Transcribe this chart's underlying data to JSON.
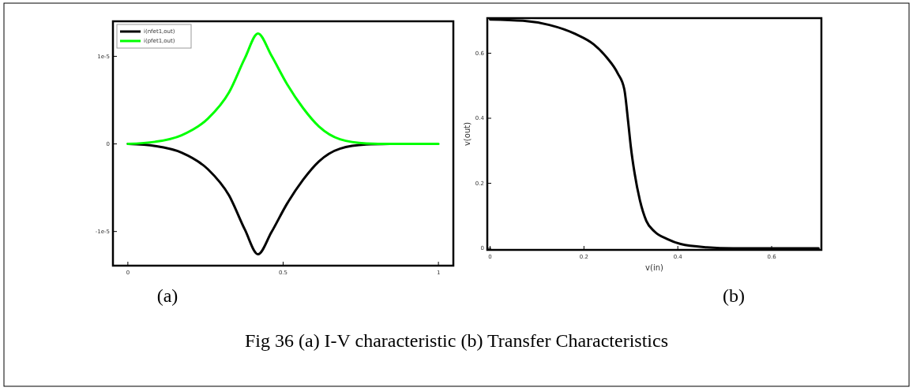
{
  "chart_data": [
    {
      "type": "line",
      "xlim": [
        -0.048,
        1.048
      ],
      "ylim": [
        -1.39e-05,
        1.4e-05
      ],
      "xticks": [
        0,
        0.5,
        1
      ],
      "yticks": [
        {
          "value": -1e-05,
          "label": "-1e-5"
        },
        0,
        {
          "value": 1e-05,
          "label": "1e-5"
        }
      ],
      "legend": "top left",
      "grid": false,
      "annotations": [
        "(a)"
      ],
      "series": [
        {
          "name": "i(nfet1,out)",
          "color": "#000000",
          "x": [
            0,
            0.088,
            0.173,
            0.258,
            0.326,
            0.377,
            0.419,
            0.462,
            0.513,
            0.564,
            0.615,
            0.683,
            0.768,
            0.844
          ],
          "values": [
            0,
            -2.4e-07,
            -9.9e-07,
            -2.9e-06,
            -5.9e-06,
            -9.8e-06,
            -1.26e-05,
            -1.01e-05,
            -6.8e-06,
            -4.1e-06,
            -2e-06,
            -5.4e-07,
            -6e-08,
            0
          ]
        },
        {
          "name": "i(pfet1,out)",
          "color": "#00ff00",
          "x": [
            0,
            0.088,
            0.173,
            0.258,
            0.326,
            0.377,
            0.419,
            0.462,
            0.513,
            0.564,
            0.615,
            0.683,
            0.768,
            0.844,
            1
          ],
          "values": [
            0,
            2.4e-07,
            9.9e-07,
            2.9e-06,
            5.9e-06,
            9.8e-06,
            1.26e-05,
            1.01e-05,
            6.8e-06,
            4.1e-06,
            2e-06,
            5.4e-07,
            6e-08,
            0,
            0
          ]
        }
      ]
    },
    {
      "type": "line",
      "xlabel": "v(in)",
      "ylabel": "v(out)",
      "xlim": [
        -0.006,
        0.706
      ],
      "ylim": [
        -0.005,
        0.708
      ],
      "xticks": [
        0,
        0.2,
        0.4,
        0.6
      ],
      "yticks": [
        0,
        0.2,
        0.4,
        0.6
      ],
      "grid": false,
      "annotations": [
        "(b)",
        "Fig 36 (a) I-V characteristic (b) Transfer Characteristics"
      ],
      "series": [
        {
          "color": "#000000",
          "x": [
            0,
            0.07,
            0.126,
            0.182,
            0.221,
            0.249,
            0.272,
            0.286,
            0.294,
            0.3,
            0.308,
            0.319,
            0.333,
            0.35,
            0.378,
            0.406,
            0.462,
            0.518,
            0.7
          ],
          "values": [
            0.704,
            0.7,
            0.687,
            0.659,
            0.627,
            0.586,
            0.538,
            0.489,
            0.392,
            0.311,
            0.23,
            0.149,
            0.084,
            0.052,
            0.028,
            0.013,
            0.003,
            0,
            0
          ]
        }
      ]
    }
  ]
}
